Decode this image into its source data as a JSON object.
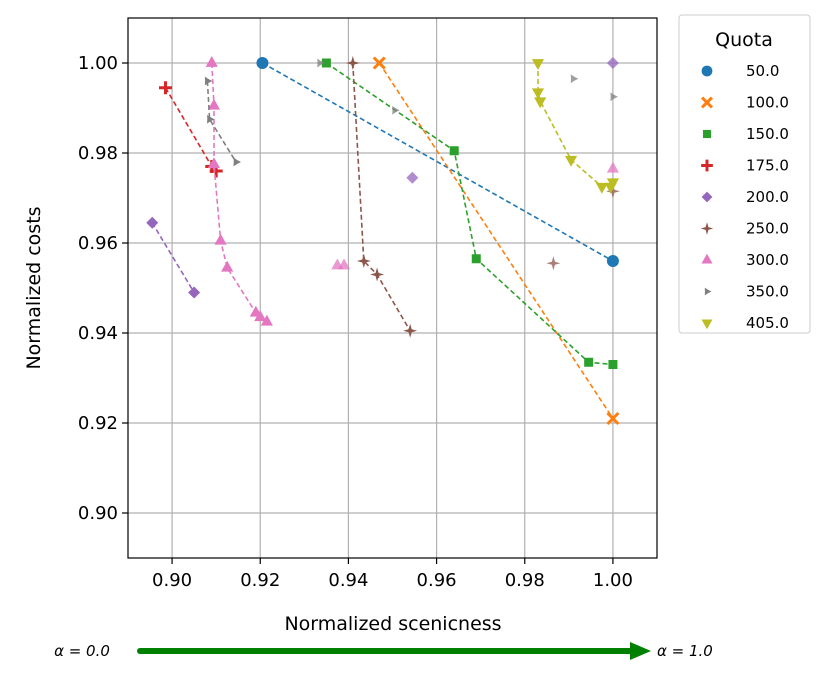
{
  "chart_data": {
    "type": "scatter",
    "xlabel": "Normalized scenicness",
    "ylabel": "Normalized costs",
    "xlim": [
      0.89,
      1.01
    ],
    "ylim": [
      0.89,
      1.01
    ],
    "x_ticks": [
      0.9,
      0.92,
      0.94,
      0.96,
      0.98,
      1.0
    ],
    "y_ticks": [
      0.9,
      0.92,
      0.94,
      0.96,
      0.98,
      1.0
    ],
    "x_tick_labels": [
      "0.90",
      "0.92",
      "0.94",
      "0.96",
      "0.98",
      "1.00"
    ],
    "y_tick_labels": [
      "0.90",
      "0.92",
      "0.94",
      "0.96",
      "0.98",
      "1.00"
    ],
    "grid": true,
    "legend": {
      "title": "Quota",
      "placement": "outside-top-right"
    },
    "alpha_arrow": {
      "start_label": "α = 0.0",
      "end_label": "α = 1.0",
      "color": "#008000"
    },
    "series": [
      {
        "name": "50.0",
        "marker": "circle",
        "color": "#1f77b4",
        "path": [
          [
            0.9205,
            1.0
          ],
          [
            1.0,
            0.956
          ]
        ],
        "faded": []
      },
      {
        "name": "100.0",
        "marker": "x",
        "color": "#ff7f0e",
        "path": [
          [
            0.947,
            1.0
          ],
          [
            1.0,
            0.921
          ]
        ],
        "faded": []
      },
      {
        "name": "150.0",
        "marker": "square",
        "color": "#2ca02c",
        "path": [
          [
            0.935,
            1.0
          ],
          [
            0.964,
            0.9805
          ],
          [
            0.969,
            0.9565
          ],
          [
            0.9945,
            0.9335
          ],
          [
            1.0,
            0.933
          ]
        ],
        "faded": []
      },
      {
        "name": "175.0",
        "marker": "plus",
        "color": "#d62728",
        "path": [
          [
            0.8985,
            0.9945
          ],
          [
            0.909,
            0.977
          ],
          [
            0.91,
            0.976
          ]
        ],
        "faded": []
      },
      {
        "name": "200.0",
        "marker": "diamond",
        "color": "#9467bd",
        "path": [
          [
            0.8955,
            0.9645
          ],
          [
            0.905,
            0.949
          ]
        ],
        "faded": [
          [
            0.9545,
            0.9745
          ],
          [
            1.0,
            1.0
          ]
        ]
      },
      {
        "name": "250.0",
        "marker": "star",
        "color": "#8c564b",
        "path": [
          [
            0.941,
            1.0
          ],
          [
            0.9435,
            0.956
          ],
          [
            0.9465,
            0.953
          ],
          [
            0.954,
            0.9405
          ]
        ],
        "faded": [
          [
            0.9865,
            0.9555
          ],
          [
            1.0,
            0.9715
          ]
        ]
      },
      {
        "name": "300.0",
        "marker": "triangle-up",
        "color": "#e377c2",
        "path": [
          [
            0.909,
            1.0
          ],
          [
            0.9095,
            0.9905
          ],
          [
            0.9095,
            0.9775
          ],
          [
            0.911,
            0.9605
          ],
          [
            0.9125,
            0.9545
          ],
          [
            0.919,
            0.9445
          ],
          [
            0.92,
            0.9435
          ],
          [
            0.9215,
            0.9425
          ]
        ],
        "faded": [
          [
            0.9375,
            0.955
          ],
          [
            0.939,
            0.955
          ],
          [
            1.0,
            0.9765
          ]
        ]
      },
      {
        "name": "350.0",
        "marker": "tri",
        "color": "#7f7f7f",
        "path": [
          [
            0.908,
            0.996
          ],
          [
            0.9085,
            0.9875
          ],
          [
            0.9145,
            0.978
          ]
        ],
        "faded": [
          [
            0.9335,
            1.0
          ],
          [
            0.9505,
            0.9895
          ],
          [
            0.991,
            0.9965
          ],
          [
            1.0,
            0.9925
          ]
        ]
      },
      {
        "name": "405.0",
        "marker": "triangle-down",
        "color": "#bcbd22",
        "path": [
          [
            0.983,
            1.0
          ],
          [
            0.983,
            0.9935
          ],
          [
            0.9835,
            0.9915
          ],
          [
            0.9905,
            0.9785
          ],
          [
            0.9975,
            0.9725
          ],
          [
            0.9995,
            0.9725
          ],
          [
            1.0,
            0.9735
          ]
        ],
        "faded": []
      }
    ]
  }
}
